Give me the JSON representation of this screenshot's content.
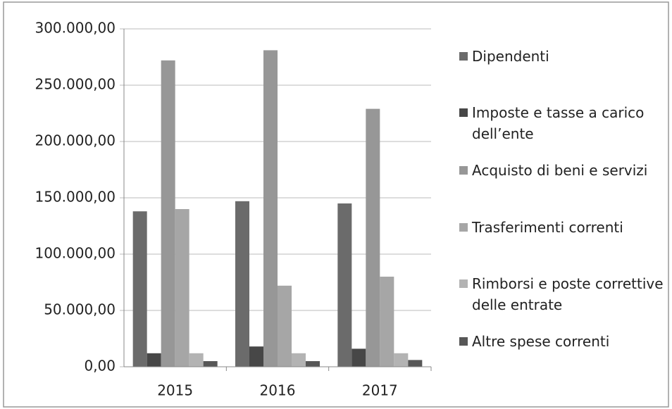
{
  "chart_data": {
    "type": "bar",
    "categories": [
      "2015",
      "2016",
      "2017"
    ],
    "series": [
      {
        "name": "Dipendenti",
        "color": "#6b6b6b",
        "values": [
          138000,
          147000,
          145000
        ]
      },
      {
        "name": "Imposte e tasse a carico dell’ente",
        "color": "#474747",
        "values": [
          12000,
          18000,
          16000
        ]
      },
      {
        "name": "Acquisto di beni e servizi",
        "color": "#979797",
        "values": [
          272000,
          281000,
          229000
        ]
      },
      {
        "name": "Trasferimenti correnti",
        "color": "#a6a6a6",
        "values": [
          140000,
          72000,
          80000
        ]
      },
      {
        "name": "Rimborsi e poste correttive delle entrate",
        "color": "#b3b3b3",
        "values": [
          12000,
          12000,
          12000
        ]
      },
      {
        "name": "Altre spese correnti",
        "color": "#575757",
        "values": [
          5000,
          5000,
          6000
        ]
      }
    ],
    "ylim": [
      0,
      300000
    ],
    "yticks": [
      {
        "value": 0,
        "label": "0,00"
      },
      {
        "value": 50000,
        "label": "50.000,00"
      },
      {
        "value": 100000,
        "label": "100.000,00"
      },
      {
        "value": 150000,
        "label": "150.000,00"
      },
      {
        "value": 200000,
        "label": "200.000,00"
      },
      {
        "value": 250000,
        "label": "250.000,00"
      },
      {
        "value": 300000,
        "label": "300.000,00"
      }
    ],
    "grid": true,
    "legend": "right"
  }
}
